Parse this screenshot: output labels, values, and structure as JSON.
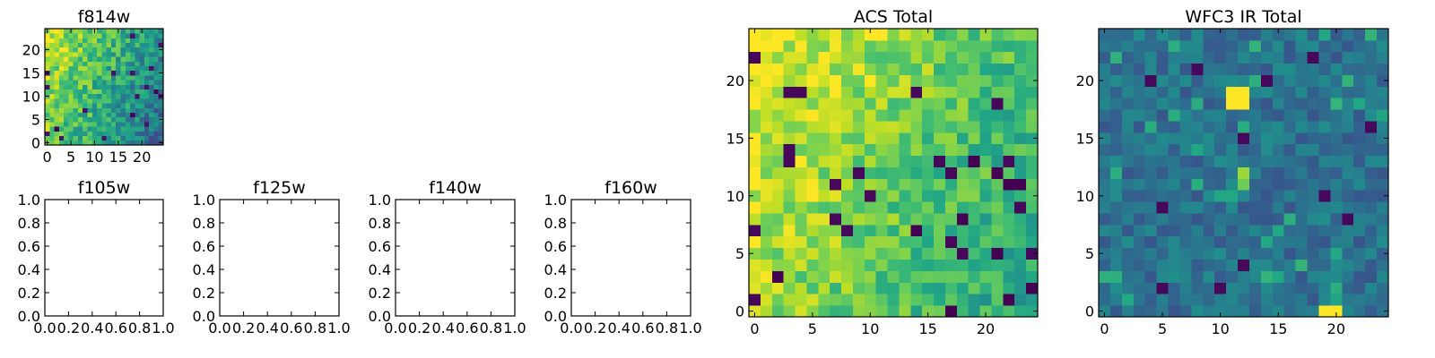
{
  "chart_data": [
    {
      "type": "heatmap",
      "title": "f814w",
      "xlim": [
        -0.5,
        24.5
      ],
      "ylim": [
        -0.5,
        24.5
      ],
      "xticks": [
        0,
        5,
        10,
        15,
        20
      ],
      "yticks": [
        0,
        5,
        10,
        15,
        20
      ],
      "grid": false,
      "colormap": "viridis",
      "matrix_size": [
        25,
        25
      ],
      "has_data": true
    },
    {
      "type": "heatmap",
      "title": "f105w",
      "xlim": [
        0,
        1
      ],
      "ylim": [
        0,
        1
      ],
      "xticks": [
        "0.0",
        "0.2",
        "0.4",
        "0.6",
        "0.8",
        "1.0"
      ],
      "yticks": [
        "0.0",
        "0.2",
        "0.4",
        "0.6",
        "0.8",
        "1.0"
      ],
      "has_data": false
    },
    {
      "type": "heatmap",
      "title": "f125w",
      "xlim": [
        0,
        1
      ],
      "ylim": [
        0,
        1
      ],
      "xticks": [
        "0.0",
        "0.2",
        "0.4",
        "0.6",
        "0.8",
        "1.0"
      ],
      "yticks": [
        "0.0",
        "0.2",
        "0.4",
        "0.6",
        "0.8",
        "1.0"
      ],
      "has_data": false
    },
    {
      "type": "heatmap",
      "title": "f140w",
      "xlim": [
        0,
        1
      ],
      "ylim": [
        0,
        1
      ],
      "xticks": [
        "0.0",
        "0.2",
        "0.4",
        "0.6",
        "0.8",
        "1.0"
      ],
      "yticks": [
        "0.0",
        "0.2",
        "0.4",
        "0.6",
        "0.8",
        "1.0"
      ],
      "has_data": false
    },
    {
      "type": "heatmap",
      "title": "f160w",
      "xlim": [
        0,
        1
      ],
      "ylim": [
        0,
        1
      ],
      "xticks": [
        "0.0",
        "0.2",
        "0.4",
        "0.6",
        "0.8",
        "1.0"
      ],
      "yticks": [
        "0.0",
        "0.2",
        "0.4",
        "0.6",
        "0.8",
        "1.0"
      ],
      "has_data": false
    },
    {
      "type": "heatmap",
      "title": "ACS Total",
      "xlim": [
        -0.5,
        24.5
      ],
      "ylim": [
        -0.5,
        24.5
      ],
      "xticks": [
        0,
        5,
        10,
        15,
        20
      ],
      "yticks": [
        0,
        5,
        10,
        15,
        20
      ],
      "grid": false,
      "colormap": "viridis",
      "matrix_size": [
        25,
        25
      ],
      "has_data": true
    },
    {
      "type": "heatmap",
      "title": "WFC3 IR Total",
      "xlim": [
        -0.5,
        24.5
      ],
      "ylim": [
        -0.5,
        24.5
      ],
      "xticks": [
        0,
        5,
        10,
        15,
        20
      ],
      "yticks": [
        0,
        5,
        10,
        15,
        20
      ],
      "grid": false,
      "colormap": "viridis",
      "matrix_size": [
        25,
        25
      ],
      "has_data": true,
      "bright_pixels": [
        {
          "x": 11,
          "y": 18
        },
        {
          "x": 12,
          "y": 18
        },
        {
          "x": 11,
          "y": 19
        },
        {
          "x": 12,
          "y": 19
        },
        {
          "x": 12,
          "y": 12
        },
        {
          "x": 19,
          "y": 0
        },
        {
          "x": 20,
          "y": 0
        }
      ],
      "dark_pixels": [
        {
          "x": 18,
          "y": 22
        },
        {
          "x": 8,
          "y": 21
        },
        {
          "x": 14,
          "y": 20
        },
        {
          "x": 4,
          "y": 20
        },
        {
          "x": 12,
          "y": 15
        },
        {
          "x": 5,
          "y": 9
        },
        {
          "x": 19,
          "y": 10
        },
        {
          "x": 21,
          "y": 8
        },
        {
          "x": 12,
          "y": 4
        },
        {
          "x": 10,
          "y": 2
        },
        {
          "x": 5,
          "y": 2
        },
        {
          "x": 23,
          "y": 16
        }
      ]
    }
  ]
}
